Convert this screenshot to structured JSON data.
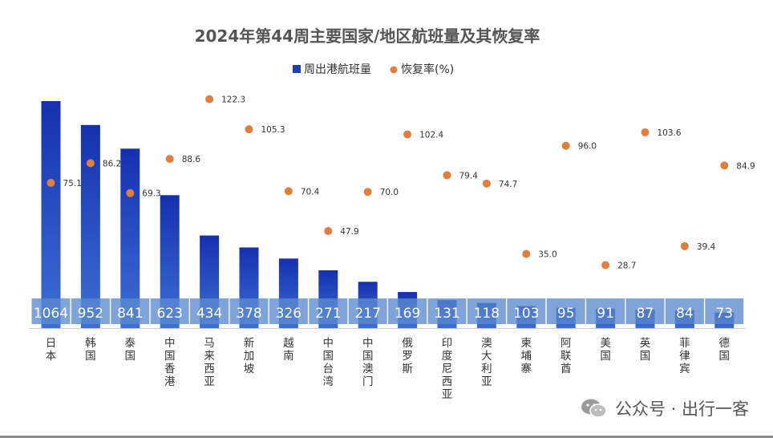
{
  "chart_data": {
    "type": "bar",
    "title": "2024年第44周主要国家/地区航班量及其恢复率",
    "categories": [
      "日本",
      "韩国",
      "泰国",
      "中国香港",
      "马来西亚",
      "新加坡",
      "越南",
      "中国台湾",
      "中国澳门",
      "俄罗斯",
      "印度尼西亚",
      "澳大利亚",
      "柬埔寨",
      "阿联酋",
      "美国",
      "英国",
      "菲律宾",
      "德国"
    ],
    "series": [
      {
        "name": "周出港航班量",
        "type": "bar",
        "color": "#1f3db8",
        "values": [
          1064,
          952,
          841,
          623,
          434,
          378,
          326,
          271,
          217,
          169,
          131,
          118,
          103,
          95,
          91,
          87,
          84,
          73
        ]
      },
      {
        "name": "恢复率(%)",
        "type": "scatter",
        "color": "#e07f3c",
        "values": [
          75.1,
          86.2,
          69.3,
          88.6,
          122.3,
          105.3,
          70.4,
          47.9,
          70.0,
          102.4,
          79.4,
          74.7,
          35.0,
          96.0,
          28.7,
          103.6,
          39.4,
          84.9
        ],
        "labels": [
          "75.1",
          "86.2",
          "69.3",
          "88.6",
          "122.3",
          "105.3",
          "70.4",
          "47.9",
          "70.0",
          "102.4",
          "79.4",
          "74.7",
          "35.0",
          "96.0",
          "28.7",
          "103.6",
          "39.4",
          "84.9"
        ]
      }
    ],
    "legend_position": "top-center",
    "grid": false
  },
  "watermark": {
    "text": "公众号 · 出行一客",
    "icon": "wechat-icon"
  }
}
